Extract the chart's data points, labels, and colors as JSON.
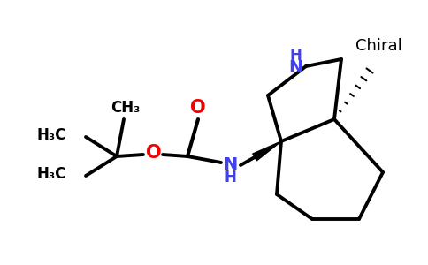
{
  "background_color": "#ffffff",
  "black": "#000000",
  "blue": "#4040ee",
  "red": "#ee0000",
  "line_width": 2.8,
  "chiral_text": "Chiral",
  "ch3_label": "CH₃",
  "h3c_label": "H₃C"
}
